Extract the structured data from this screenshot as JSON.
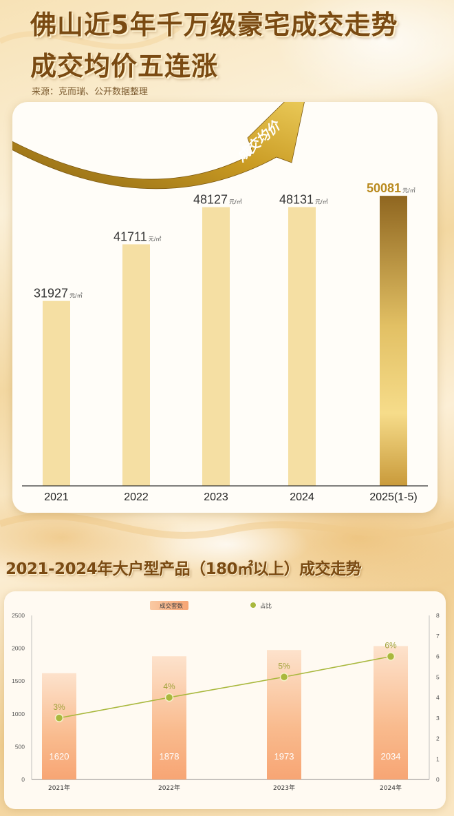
{
  "header": {
    "title_line1": "佛山近5年千万级豪宅成交走势",
    "title_line2": "成交均价五连涨",
    "source": "来源：克而瑞、公开数据整理"
  },
  "colors": {
    "bar_light": "#f5dfa3",
    "bar_gold_top": "#8f6620",
    "bar_gold_mid": "#e2c064",
    "arrow_gold": "#c99a22",
    "bar_orange": "#f7a574",
    "line_green": "#a9b83d",
    "title_brown": "#7a4a12"
  },
  "chart_data": [
    {
      "type": "bar",
      "categories": [
        "2021",
        "2022",
        "2023",
        "2024",
        "2025(1-5)"
      ],
      "values": [
        31927,
        41711,
        48127,
        48131,
        50081
      ],
      "value_labels": [
        "31927",
        "41711",
        "48127",
        "48131",
        "50081"
      ],
      "unit": "元/㎡",
      "arrow_label": "成交均价",
      "ylim": [
        0,
        52000
      ]
    },
    {
      "type": "bar",
      "title": "2021-2024年大户型产品（180㎡以上）成交走势",
      "categories": [
        "2021年",
        "2022年",
        "2023年",
        "2024年"
      ],
      "series": [
        {
          "name": "成交套数",
          "type": "bar",
          "axis": "left",
          "values": [
            1620,
            1878,
            1973,
            2034
          ],
          "value_labels": [
            "1620",
            "1878",
            "1973",
            "2034"
          ]
        },
        {
          "name": "占比",
          "type": "line",
          "axis": "right",
          "values": [
            3,
            4,
            5,
            6
          ],
          "value_labels": [
            "3%",
            "4%",
            "5%",
            "6%"
          ]
        }
      ],
      "y_left": {
        "range": [
          0,
          2500
        ],
        "ticks": [
          "0",
          "500",
          "1000",
          "1500",
          "2000",
          "2500"
        ]
      },
      "y_right": {
        "range": [
          0,
          8
        ],
        "ticks": [
          "0",
          "1",
          "2",
          "3",
          "4",
          "5",
          "6",
          "7",
          "8"
        ]
      },
      "legend_position": "top-center",
      "grid": false
    }
  ]
}
